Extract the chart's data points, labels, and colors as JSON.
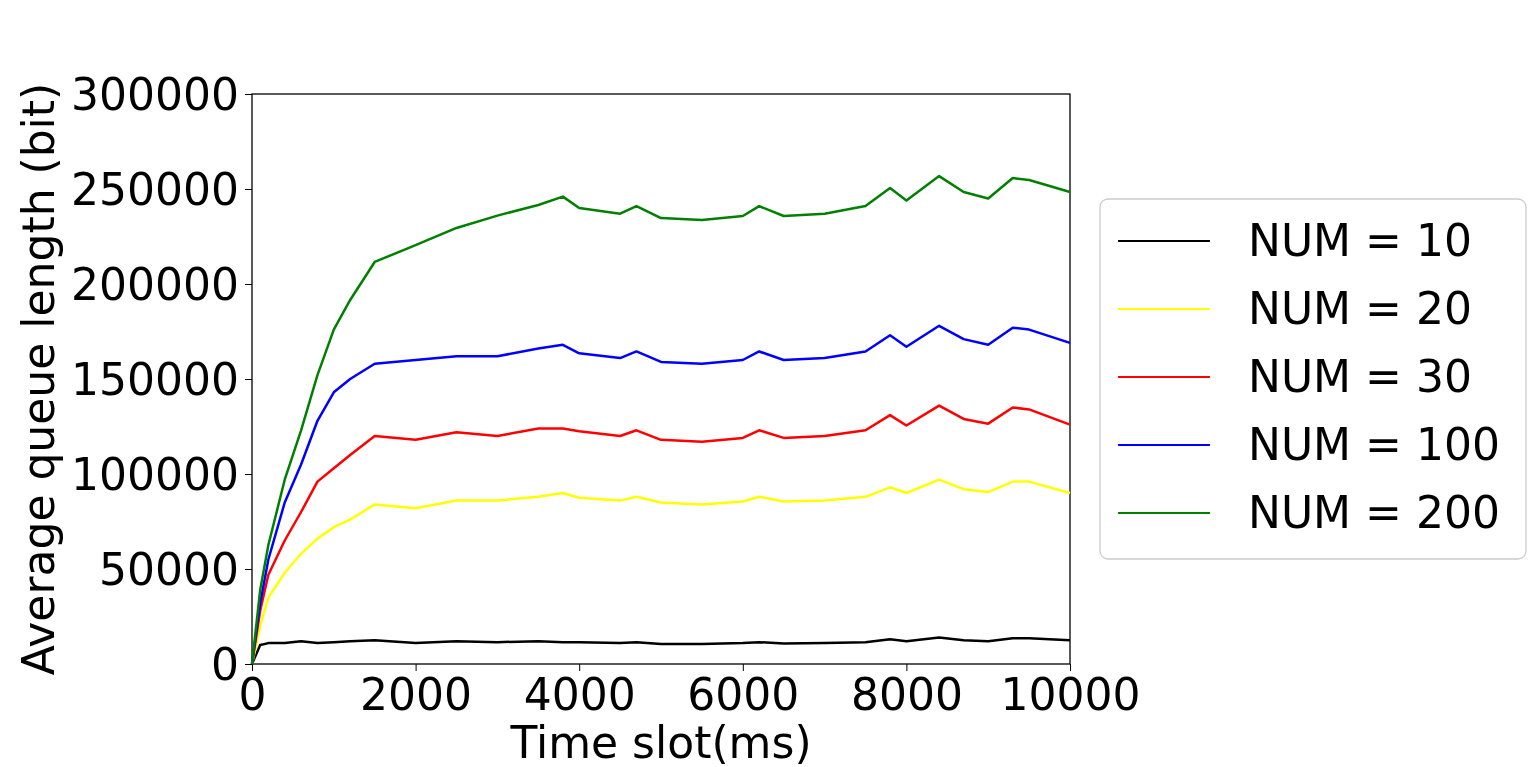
{
  "chart_data": {
    "type": "line",
    "xlabel": "Time slot(ms)",
    "ylabel": "Average queue length (bit)",
    "x": [
      0,
      100,
      200,
      400,
      600,
      800,
      1000,
      1200,
      1500,
      2000,
      2500,
      3000,
      3500,
      3800,
      4000,
      4500,
      4700,
      5000,
      5500,
      6000,
      6200,
      6500,
      7000,
      7500,
      7800,
      8000,
      8400,
      8700,
      9000,
      9300,
      9500,
      10000
    ],
    "series": [
      {
        "name": "NUM = 10",
        "color": "#000000",
        "values": [
          0,
          10000,
          11000,
          11000,
          12000,
          11000,
          11500,
          12000,
          12500,
          11000,
          12000,
          11500,
          12000,
          11500,
          11500,
          11000,
          11500,
          10500,
          10500,
          11000,
          11500,
          10800,
          11000,
          11500,
          13000,
          12000,
          14000,
          12500,
          12000,
          13500,
          13500,
          12500
        ]
      },
      {
        "name": "NUM = 20",
        "color": "#ffff00",
        "values": [
          0,
          20000,
          35000,
          48000,
          58000,
          66000,
          72000,
          76000,
          84000,
          82000,
          86000,
          86000,
          88000,
          90000,
          87500,
          86000,
          88000,
          85000,
          84000,
          85500,
          88000,
          85500,
          86000,
          88000,
          93000,
          90000,
          97000,
          92000,
          90500,
          96000,
          96000,
          90000
        ]
      },
      {
        "name": "NUM = 30",
        "color": "#ff0000",
        "values": [
          0,
          28000,
          47000,
          65000,
          80000,
          96000,
          103000,
          110000,
          120000,
          118000,
          122000,
          120000,
          124000,
          124000,
          122500,
          120000,
          123000,
          118000,
          117000,
          119000,
          123000,
          119000,
          120000,
          123000,
          131000,
          125500,
          136000,
          129000,
          126500,
          135000,
          134000,
          126000
        ]
      },
      {
        "name": "NUM = 100",
        "color": "#0000ff",
        "values": [
          0,
          32000,
          55000,
          85000,
          105000,
          128000,
          143000,
          150000,
          158000,
          160000,
          162000,
          162000,
          166000,
          168000,
          163500,
          161000,
          164500,
          159000,
          158000,
          160000,
          164500,
          160000,
          161000,
          164500,
          173000,
          167000,
          178000,
          171000,
          168000,
          177000,
          176000,
          169000
        ]
      },
      {
        "name": "NUM = 200",
        "color": "#008000",
        "values": [
          0,
          39000,
          62600,
          97000,
          123000,
          152000,
          176000,
          191600,
          211600,
          220500,
          229500,
          236000,
          241600,
          246000,
          240000,
          237000,
          241000,
          234700,
          233700,
          235800,
          241000,
          235800,
          237000,
          241000,
          250500,
          244000,
          256800,
          248400,
          245000,
          255800,
          254700,
          248400
        ]
      }
    ],
    "xlim": [
      0,
      10000
    ],
    "ylim": [
      0,
      300000
    ],
    "xticks": [
      0,
      2000,
      4000,
      6000,
      8000,
      10000
    ],
    "yticks": [
      0,
      50000,
      100000,
      150000,
      200000,
      250000,
      300000
    ],
    "legend": "right",
    "grid": false
  }
}
